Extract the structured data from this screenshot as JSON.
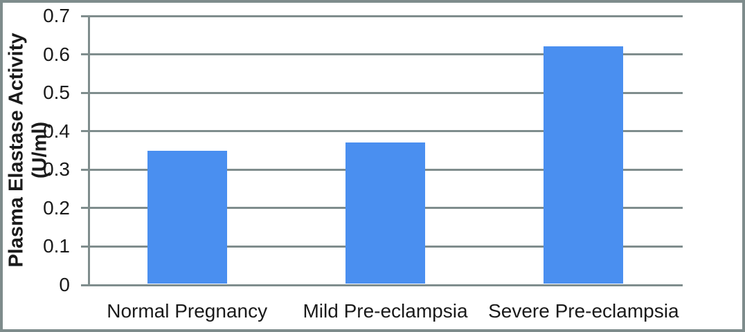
{
  "chart_data": {
    "type": "bar",
    "title": "",
    "categories": [
      "Normal Pregnancy",
      "Mild Pre-eclampsia",
      "Severe Pre-eclampsia"
    ],
    "values": [
      0.35,
      0.37,
      0.62
    ],
    "xlabel": "",
    "ylabel": "Plasma Elastase Activity (U/ml)",
    "ylabel_line1": "Plasma Elastase Activity",
    "ylabel_line2": "(U/ml)",
    "ylim": [
      0,
      0.7
    ],
    "ytick_step": 0.1,
    "yticks": [
      "0.7",
      "0.6",
      "0.5",
      "0.4",
      "0.3",
      "0.2",
      "0.1",
      "0"
    ],
    "grid": true,
    "legend": false,
    "colors": {
      "bar": "#4a8ff0",
      "gridline": "#7f8d8d",
      "frame_border": "#7e8c8c",
      "text": "#1a1a1a",
      "background": "#ffffff"
    }
  }
}
